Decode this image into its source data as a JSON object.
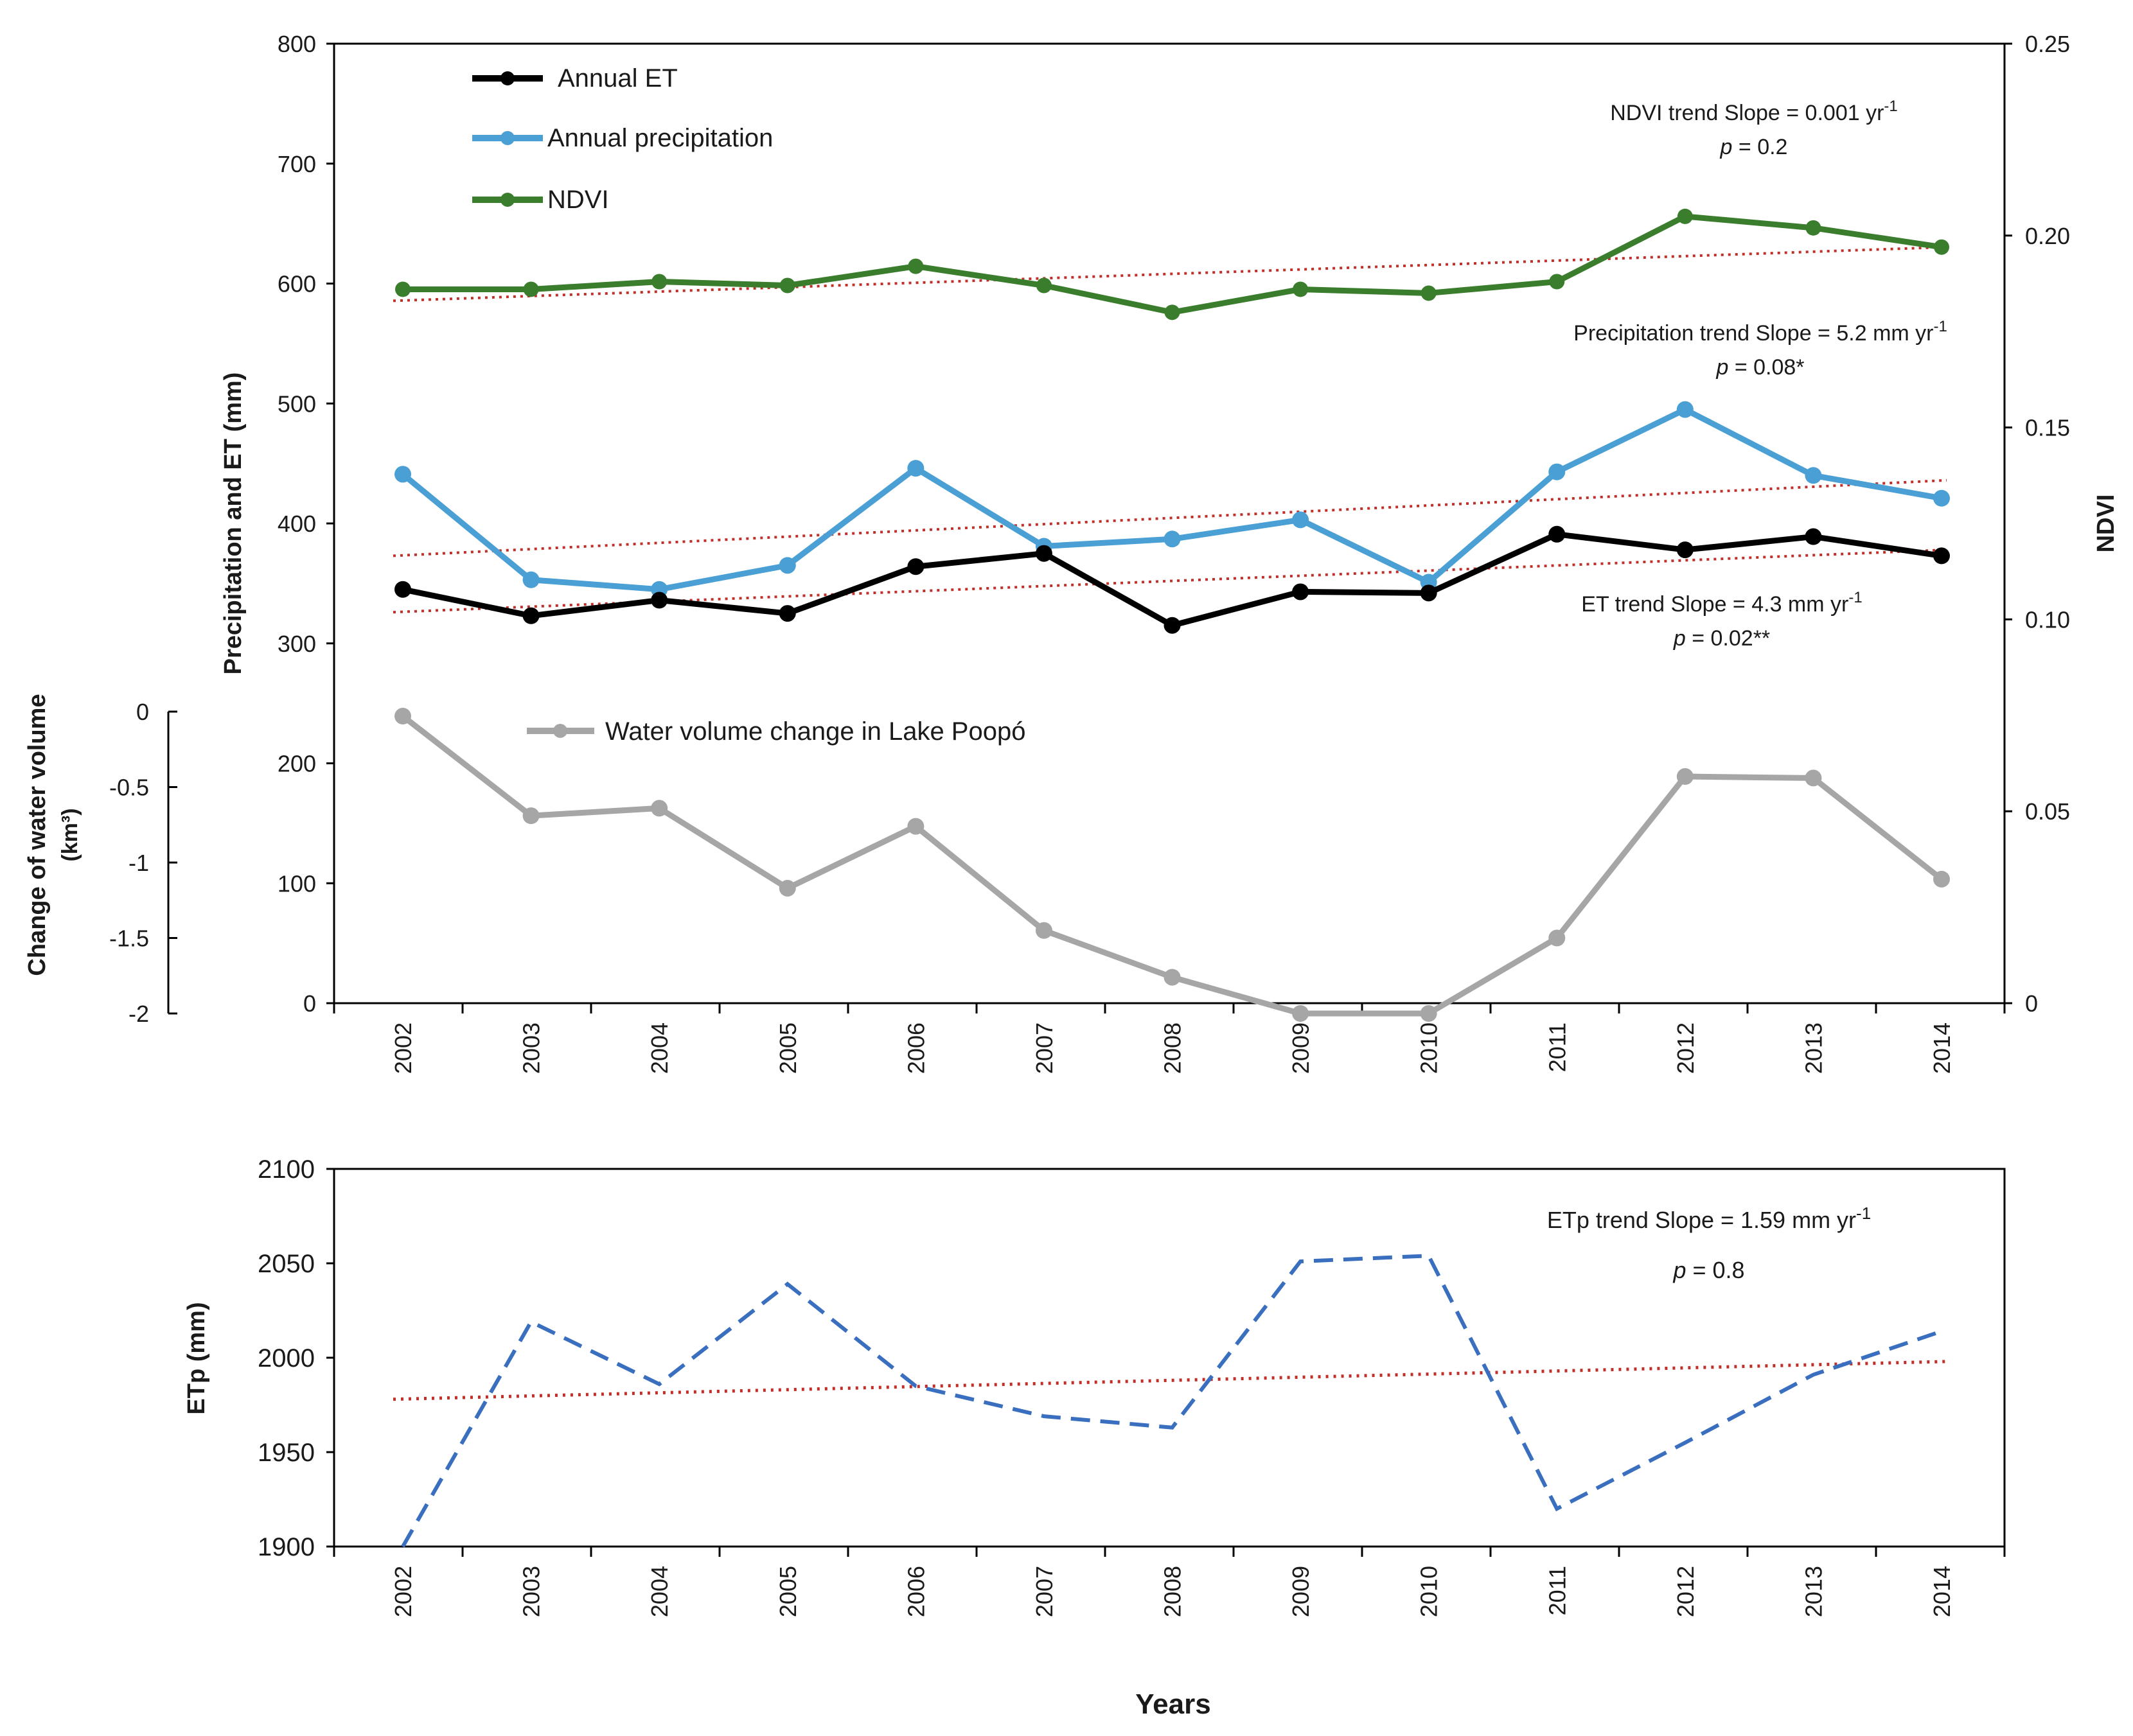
{
  "colors": {
    "et": "#000000",
    "precip": "#4a9fd4",
    "ndvi": "#3a7d2c",
    "water": "#a6a6a6",
    "etp": "#3a6fbf",
    "trend": "#c0302a"
  },
  "chart_data": [
    {
      "type": "line",
      "title": "",
      "x": [
        2002,
        2003,
        2004,
        2005,
        2006,
        2007,
        2008,
        2009,
        2010,
        2011,
        2012,
        2013,
        2014
      ],
      "x_tick_labels": [
        "2002",
        "2003",
        "2004",
        "2005",
        "2006",
        "2007",
        "2008",
        "2009",
        "2010",
        "2011",
        "2012",
        "2013",
        "2014"
      ],
      "ylabel_left": "Precipitation and ET (mm)",
      "ylim_left": [
        0,
        800
      ],
      "y_ticks_left": [
        "0",
        "100",
        "200",
        "300",
        "400",
        "500",
        "600",
        "700",
        "800"
      ],
      "ylabel_right": "NDVI",
      "ylim_right": [
        0,
        0.25
      ],
      "y_ticks_right": [
        "0",
        "0.05",
        "0.10",
        "0.15",
        "0.20",
        "0.25"
      ],
      "ylabel_secondary": "Change of water volume",
      "ylabel_secondary_unit": "(km³)",
      "ylim_secondary": [
        -2,
        0
      ],
      "y_ticks_secondary": [
        "0",
        "-0.5",
        "-1",
        "-1.5",
        "-2"
      ],
      "series": [
        {
          "name": "Annual ET",
          "axis": "left",
          "values": [
            345,
            323,
            336,
            325,
            364,
            375,
            315,
            343,
            342,
            391,
            378,
            389,
            373
          ]
        },
        {
          "name": "Annual precipitation",
          "axis": "left",
          "values": [
            441,
            353,
            345,
            365,
            446,
            381,
            387,
            403,
            351,
            443,
            495,
            440,
            421
          ]
        },
        {
          "name": "NDVI",
          "axis": "right",
          "values": [
            0.186,
            0.186,
            0.188,
            0.187,
            0.192,
            0.187,
            0.18,
            0.186,
            0.185,
            0.188,
            0.205,
            0.202,
            0.197
          ]
        },
        {
          "name": "Water volume change in Lake Poopó",
          "axis": "secondary",
          "values": [
            -0.03,
            -0.69,
            -0.64,
            -1.17,
            -0.76,
            -1.45,
            -1.76,
            -2.0,
            -2.0,
            -1.5,
            -0.43,
            -0.44,
            -1.11
          ]
        }
      ],
      "trendlines": [
        {
          "series": "NDVI",
          "axis": "right",
          "start": 0.183,
          "end": 0.197,
          "label": "NDVI trend Slope = 0.001 yr",
          "superscript": "-1",
          "p_label": "p",
          "p_value": " = 0.2"
        },
        {
          "series": "Annual precipitation",
          "axis": "left",
          "start": 373,
          "end": 436,
          "label": "Precipitation trend Slope = 5.2 mm yr",
          "superscript": "-1",
          "p_label": "p",
          "p_value": " = 0.08*"
        },
        {
          "series": "Annual ET",
          "axis": "left",
          "start": 326,
          "end": 378,
          "label": "ET trend Slope = 4.3 mm yr",
          "superscript": "-1",
          "p_label": "p",
          "p_value": " = 0.02**"
        }
      ],
      "legend": [
        "Annual ET",
        "Annual precipitation",
        "NDVI"
      ],
      "legend_water": "Water volume change in Lake Poopó"
    },
    {
      "type": "line",
      "title": "",
      "x": [
        2002,
        2003,
        2004,
        2005,
        2006,
        2007,
        2008,
        2009,
        2010,
        2011,
        2012,
        2013,
        2014
      ],
      "x_tick_labels": [
        "2002",
        "2003",
        "2004",
        "2005",
        "2006",
        "2007",
        "2008",
        "2009",
        "2010",
        "2011",
        "2012",
        "2013",
        "2014"
      ],
      "xlabel": "Years",
      "ylabel": "ETp (mm)",
      "ylim": [
        1900,
        2100
      ],
      "y_ticks": [
        "1900",
        "1950",
        "2000",
        "2050",
        "2100"
      ],
      "series": [
        {
          "name": "ETp",
          "values": [
            1899,
            2019,
            1986,
            2039,
            1985,
            1969,
            1963,
            2051,
            2054,
            1920,
            1955,
            1991,
            2014
          ]
        }
      ],
      "trendline": {
        "start": 1978,
        "end": 1998,
        "label": "ETp trend Slope = 1.59 mm yr",
        "superscript": "-1",
        "p_label": "p",
        "p_value": " = 0.8"
      }
    }
  ]
}
